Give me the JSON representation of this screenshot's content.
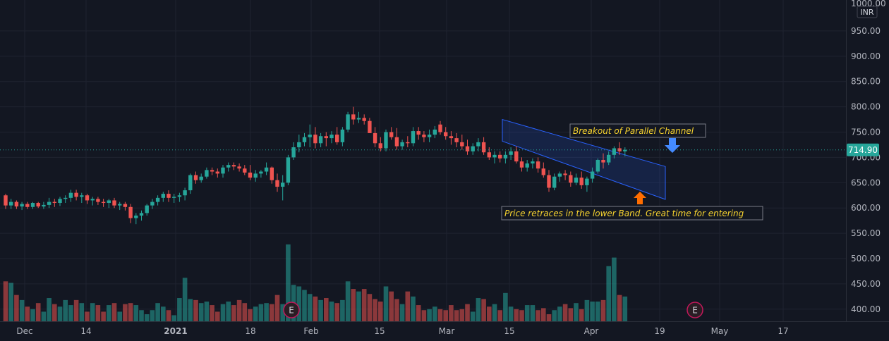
{
  "chart_data": {
    "type": "candlestick",
    "currency": "INR",
    "y_axis": {
      "range": [
        370,
        1000
      ],
      "top_label": "1000.00",
      "ticks": [
        "950.00",
        "900.00",
        "850.00",
        "800.00",
        "750.00",
        "700.00",
        "650.00",
        "600.00",
        "550.00",
        "500.00",
        "450.00",
        "400.00"
      ]
    },
    "x_axis": {
      "labels": [
        "Dec",
        "14",
        "2021",
        "18",
        "Feb",
        "15",
        "Mar",
        "15",
        "Apr",
        "19",
        "May",
        "17"
      ]
    },
    "last_price": 714.9,
    "last_price_label": "714.90",
    "colors": {
      "up": "#26a69a",
      "down": "#ef5350",
      "background": "#131722",
      "channel": "#2962ff",
      "note_text": "#f7d32f",
      "arrow_up": "#ff6d00",
      "arrow_down": "#448aff"
    },
    "annotations": [
      {
        "text": "Breakout of Parallel Channel"
      },
      {
        "text": "Price retraces in the lower Band. Great time for entering"
      }
    ],
    "earnings_marker": "E",
    "candles": [
      [
        625,
        628,
        598,
        605,
        455
      ],
      [
        605,
        618,
        598,
        612,
        452
      ],
      [
        612,
        615,
        598,
        603,
        428
      ],
      [
        603,
        612,
        596,
        608,
        418
      ],
      [
        608,
        612,
        598,
        602,
        405
      ],
      [
        602,
        612,
        598,
        610,
        400
      ],
      [
        610,
        612,
        600,
        603,
        412
      ],
      [
        603,
        612,
        598,
        606,
        395
      ],
      [
        606,
        620,
        600,
        612,
        422
      ],
      [
        612,
        618,
        602,
        610,
        410
      ],
      [
        610,
        622,
        604,
        618,
        405
      ],
      [
        618,
        625,
        610,
        620,
        418
      ],
      [
        620,
        636,
        612,
        630,
        408
      ],
      [
        630,
        636,
        615,
        622,
        418
      ],
      [
        622,
        630,
        610,
        625,
        412
      ],
      [
        625,
        628,
        608,
        615,
        395
      ],
      [
        615,
        622,
        605,
        618,
        412
      ],
      [
        618,
        622,
        606,
        612,
        408
      ],
      [
        612,
        618,
        602,
        610,
        395
      ],
      [
        610,
        618,
        600,
        615,
        408
      ],
      [
        615,
        620,
        600,
        605,
        412
      ],
      [
        605,
        612,
        596,
        608,
        395
      ],
      [
        608,
        612,
        595,
        602,
        410
      ],
      [
        602,
        608,
        570,
        580,
        412
      ],
      [
        580,
        590,
        568,
        585,
        408
      ],
      [
        585,
        595,
        575,
        590,
        398
      ],
      [
        590,
        608,
        585,
        605,
        390
      ],
      [
        605,
        618,
        598,
        612,
        398
      ],
      [
        612,
        625,
        605,
        620,
        412
      ],
      [
        620,
        632,
        612,
        628,
        405
      ],
      [
        628,
        635,
        612,
        620,
        398
      ],
      [
        620,
        628,
        610,
        622,
        388
      ],
      [
        622,
        630,
        612,
        625,
        422
      ],
      [
        625,
        640,
        615,
        635,
        462
      ],
      [
        635,
        668,
        628,
        665,
        420
      ],
      [
        665,
        672,
        648,
        655,
        418
      ],
      [
        655,
        668,
        650,
        662,
        412
      ],
      [
        662,
        680,
        658,
        675,
        415
      ],
      [
        675,
        680,
        665,
        672,
        408
      ],
      [
        672,
        678,
        660,
        668,
        395
      ],
      [
        668,
        685,
        660,
        680,
        410
      ],
      [
        680,
        690,
        672,
        685,
        415
      ],
      [
        685,
        690,
        675,
        682,
        408
      ],
      [
        682,
        688,
        672,
        678,
        418
      ],
      [
        678,
        685,
        665,
        670,
        412
      ],
      [
        670,
        685,
        655,
        660,
        400
      ],
      [
        660,
        675,
        652,
        668,
        405
      ],
      [
        668,
        675,
        660,
        672,
        410
      ],
      [
        672,
        690,
        665,
        680,
        412
      ],
      [
        680,
        682,
        648,
        655,
        410
      ],
      [
        655,
        668,
        632,
        642,
        428
      ],
      [
        642,
        665,
        615,
        650,
        410
      ],
      [
        650,
        705,
        645,
        700,
        528
      ],
      [
        700,
        730,
        695,
        720,
        448
      ],
      [
        720,
        745,
        710,
        730,
        445
      ],
      [
        730,
        748,
        722,
        740,
        438
      ],
      [
        740,
        765,
        720,
        745,
        430
      ],
      [
        745,
        760,
        718,
        728,
        425
      ],
      [
        728,
        748,
        720,
        742,
        418
      ],
      [
        742,
        750,
        722,
        738,
        422
      ],
      [
        738,
        752,
        728,
        745,
        415
      ],
      [
        745,
        760,
        725,
        730,
        412
      ],
      [
        730,
        760,
        722,
        755,
        418
      ],
      [
        755,
        790,
        750,
        785,
        455
      ],
      [
        785,
        800,
        765,
        775,
        440
      ],
      [
        775,
        790,
        768,
        778,
        435
      ],
      [
        778,
        785,
        765,
        772,
        440
      ],
      [
        772,
        778,
        750,
        748,
        430
      ],
      [
        748,
        760,
        720,
        728,
        420
      ],
      [
        728,
        740,
        712,
        718,
        415
      ],
      [
        718,
        755,
        712,
        750,
        445
      ],
      [
        750,
        760,
        735,
        740,
        435
      ],
      [
        740,
        758,
        715,
        722,
        420
      ],
      [
        722,
        735,
        715,
        730,
        410
      ],
      [
        730,
        742,
        720,
        728,
        435
      ],
      [
        728,
        760,
        722,
        752,
        425
      ],
      [
        752,
        760,
        735,
        745,
        408
      ],
      [
        745,
        752,
        730,
        740,
        398
      ],
      [
        740,
        755,
        730,
        745,
        400
      ],
      [
        745,
        762,
        738,
        755,
        405
      ],
      [
        765,
        772,
        745,
        750,
        400
      ],
      [
        750,
        760,
        735,
        742,
        398
      ],
      [
        742,
        752,
        725,
        738,
        408
      ],
      [
        738,
        748,
        720,
        730,
        398
      ],
      [
        730,
        745,
        715,
        722,
        400
      ],
      [
        722,
        735,
        705,
        712,
        410
      ],
      [
        712,
        728,
        705,
        722,
        395
      ],
      [
        722,
        738,
        712,
        730,
        422
      ],
      [
        730,
        740,
        705,
        710,
        420
      ],
      [
        710,
        720,
        695,
        700,
        405
      ],
      [
        700,
        712,
        688,
        705,
        410
      ],
      [
        705,
        712,
        690,
        698,
        398
      ],
      [
        698,
        712,
        688,
        705,
        432
      ],
      [
        705,
        720,
        695,
        712,
        405
      ],
      [
        712,
        722,
        688,
        692,
        400
      ],
      [
        692,
        700,
        672,
        680,
        398
      ],
      [
        680,
        695,
        672,
        688,
        408
      ],
      [
        688,
        698,
        678,
        692,
        408
      ],
      [
        692,
        700,
        670,
        678,
        398
      ],
      [
        678,
        690,
        660,
        665,
        402
      ],
      [
        665,
        675,
        632,
        640,
        390
      ],
      [
        640,
        668,
        635,
        662,
        398
      ],
      [
        662,
        672,
        652,
        668,
        405
      ],
      [
        668,
        675,
        655,
        665,
        410
      ],
      [
        665,
        672,
        642,
        650,
        402
      ],
      [
        650,
        668,
        645,
        660,
        412
      ],
      [
        660,
        672,
        638,
        645,
        400
      ],
      [
        645,
        662,
        632,
        658,
        418
      ],
      [
        658,
        680,
        650,
        672,
        415
      ],
      [
        672,
        698,
        668,
        695,
        415
      ],
      [
        695,
        708,
        678,
        690,
        418
      ],
      [
        690,
        712,
        685,
        705,
        485
      ],
      [
        705,
        722,
        698,
        718,
        502
      ],
      [
        718,
        730,
        705,
        712,
        428
      ],
      [
        712,
        720,
        702,
        714.9,
        425
      ]
    ]
  }
}
